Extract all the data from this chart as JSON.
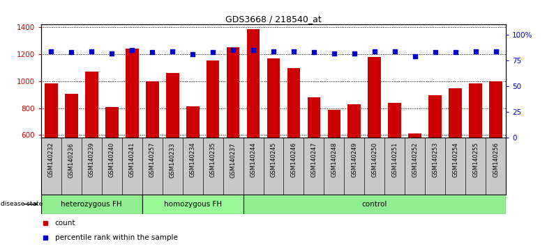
{
  "title": "GDS3668 / 218540_at",
  "samples": [
    "GSM140232",
    "GSM140236",
    "GSM140239",
    "GSM140240",
    "GSM140241",
    "GSM140257",
    "GSM140233",
    "GSM140234",
    "GSM140235",
    "GSM140237",
    "GSM140244",
    "GSM140245",
    "GSM140246",
    "GSM140247",
    "GSM140248",
    "GSM140249",
    "GSM140250",
    "GSM140251",
    "GSM140252",
    "GSM140253",
    "GSM140254",
    "GSM140255",
    "GSM140256"
  ],
  "counts": [
    985,
    905,
    1070,
    810,
    1240,
    1000,
    1060,
    815,
    1155,
    1250,
    1385,
    1170,
    1095,
    880,
    785,
    830,
    1180,
    840,
    610,
    895,
    945,
    985,
    1000
  ],
  "percentiles": [
    84,
    83,
    84,
    82,
    85,
    83,
    84,
    81,
    83,
    85,
    85,
    84,
    84,
    83,
    82,
    82,
    84,
    84,
    79,
    83,
    83,
    84,
    84
  ],
  "groups": [
    {
      "name": "heterozygous FH",
      "start": 0,
      "end": 5,
      "color": "#90EE90"
    },
    {
      "name": "homozygous FH",
      "start": 5,
      "end": 10,
      "color": "#98FB98"
    },
    {
      "name": "control",
      "start": 10,
      "end": 23,
      "color": "#90EE90"
    }
  ],
  "bar_color": "#CC0000",
  "dot_color": "#0000CC",
  "ylim_left": [
    580,
    1420
  ],
  "yticks_left": [
    600,
    800,
    1000,
    1200,
    1400
  ],
  "ylim_right": [
    0,
    110
  ],
  "yticks_right": [
    0,
    25,
    50,
    75,
    100
  ],
  "ytick_labels_right": [
    "0",
    "25",
    "50",
    "75",
    "100%"
  ],
  "gray_bg": "#C8C8C8",
  "plot_bg_color": "#FFFFFF",
  "fig_width": 7.84,
  "fig_height": 3.54,
  "dpi": 100
}
